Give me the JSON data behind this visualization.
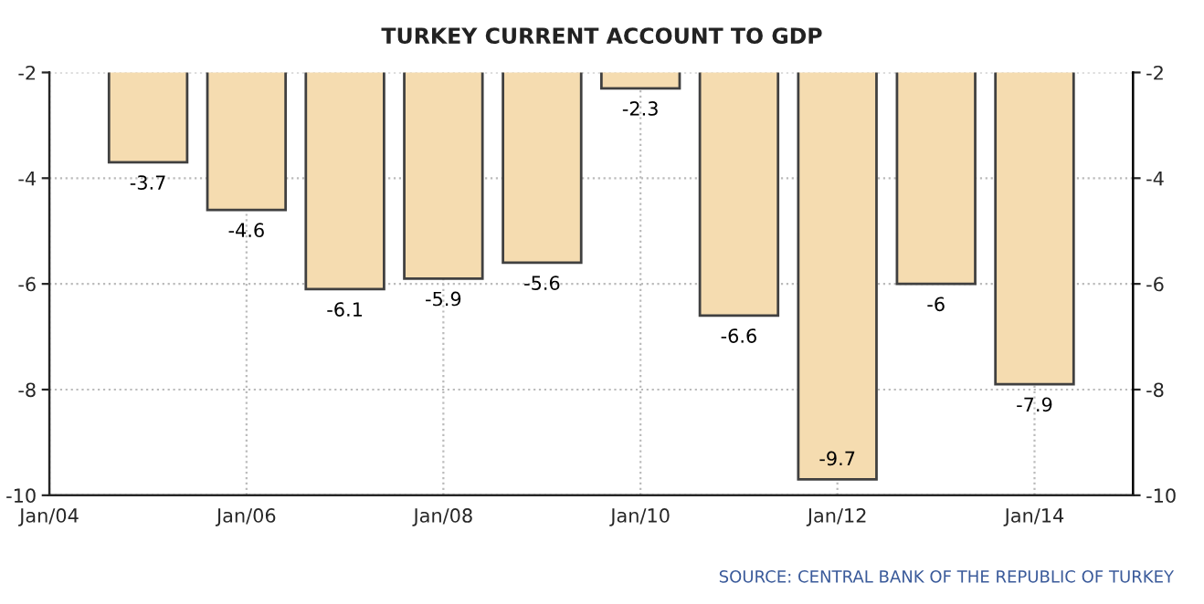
{
  "chart_data": {
    "type": "bar",
    "title": "TURKEY CURRENT ACCOUNT TO GDP",
    "x": [
      "2005",
      "2006",
      "2007",
      "2008",
      "2009",
      "2010",
      "2011",
      "2012",
      "2013",
      "2014"
    ],
    "series": [
      {
        "color": "#f5dcb0",
        "values": [
          -3.7,
          -4.6,
          -6.1,
          -5.9,
          -5.6,
          -2.3,
          -6.6,
          -9.7,
          -6,
          -7.9
        ]
      }
    ],
    "data_labels": true,
    "xlim": [
      "2004",
      "2015"
    ],
    "xticks": [
      {
        "value": "2004",
        "label": "Jan/04"
      },
      {
        "value": "2006",
        "label": "Jan/06"
      },
      {
        "value": "2008",
        "label": "Jan/08"
      },
      {
        "value": "2010",
        "label": "Jan/10"
      },
      {
        "value": "2012",
        "label": "Jan/12"
      },
      {
        "value": "2014",
        "label": "Jan/14"
      }
    ],
    "ylim": [
      -10,
      -2
    ],
    "yticks": [
      -10,
      -8,
      -6,
      -4,
      -2
    ],
    "y2lim": [
      -10,
      -2
    ],
    "y2ticks": [
      -10,
      -8,
      -6,
      -4,
      -2
    ],
    "grid": true,
    "annotations": [
      "SOURCE: CENTRAL BANK OF THE REPUBLIC OF TURKEY"
    ]
  }
}
